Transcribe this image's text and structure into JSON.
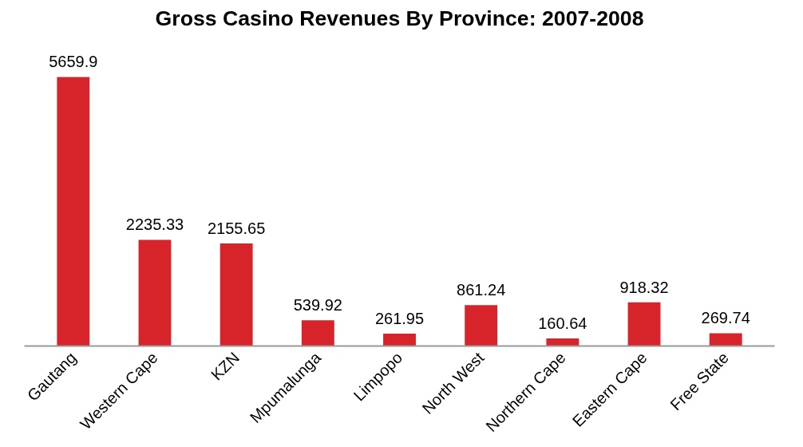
{
  "chart_data": {
    "type": "bar",
    "title": "Gross Casino Revenues By Province: 2007-2008",
    "categories": [
      "Gautang",
      "Western Cape",
      "KZN",
      "Mpumalunga",
      "Limpopo",
      "North West",
      "Northern Cape",
      "Eastern Cape",
      "Free State"
    ],
    "values": [
      5659.9,
      2235.33,
      2155.65,
      539.92,
      261.95,
      861.24,
      160.64,
      918.32,
      269.74
    ],
    "color": "#d7232a",
    "data_labels": true,
    "grid": false
  }
}
